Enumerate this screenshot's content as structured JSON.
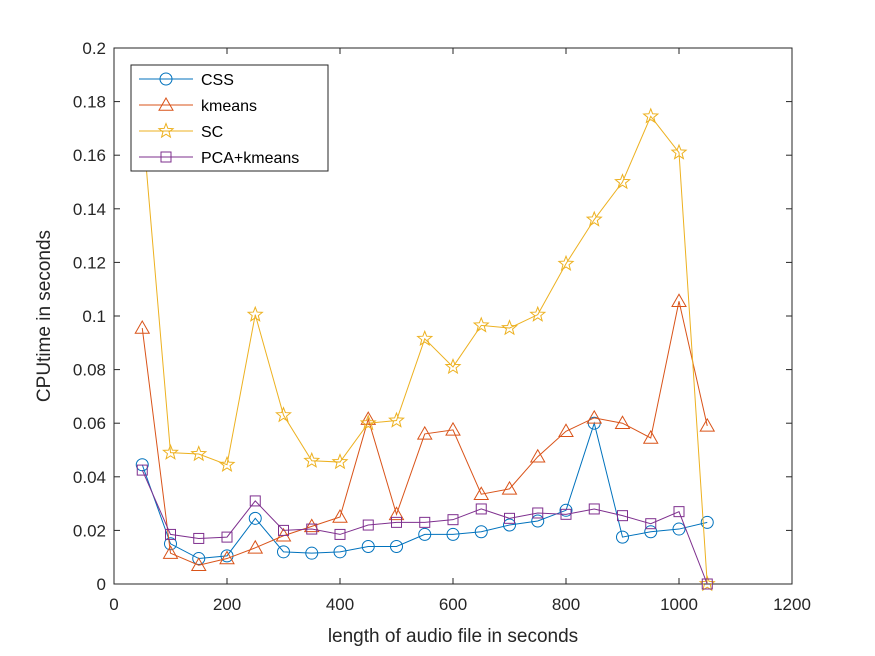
{
  "chart_data": {
    "type": "line",
    "xlabel": "length of audio file in seconds",
    "ylabel": "CPUtime in seconds",
    "xlim": [
      0,
      1200
    ],
    "ylim": [
      0,
      0.2
    ],
    "xticks": [
      0,
      200,
      400,
      600,
      800,
      1000,
      1200
    ],
    "yticks": [
      0,
      0.02,
      0.04,
      0.06,
      0.08,
      0.1,
      0.12,
      0.14,
      0.16,
      0.18,
      0.2
    ],
    "grid": false,
    "legend_position": "top-left",
    "x": [
      50,
      100,
      150,
      200,
      250,
      300,
      350,
      400,
      450,
      500,
      550,
      600,
      650,
      700,
      750,
      800,
      850,
      900,
      950,
      1000,
      1050
    ],
    "series": [
      {
        "name": "CSS",
        "color": "#0072BD",
        "marker": "circle",
        "values": [
          0.0445,
          0.015,
          0.0095,
          0.0105,
          0.0245,
          0.012,
          0.0115,
          0.012,
          0.014,
          0.014,
          0.0185,
          0.0185,
          0.0195,
          0.022,
          0.0235,
          0.0275,
          0.06,
          0.0175,
          0.0195,
          0.0205,
          0.023
        ]
      },
      {
        "name": "kmeans",
        "color": "#D95319",
        "marker": "triangle",
        "values": [
          0.0955,
          0.0115,
          0.007,
          0.0095,
          0.0135,
          0.018,
          0.0215,
          0.025,
          0.0615,
          0.026,
          0.056,
          0.0575,
          0.0335,
          0.0355,
          0.0475,
          0.057,
          0.062,
          0.06,
          0.0545,
          0.1055,
          0.059
        ]
      },
      {
        "name": "SC",
        "color": "#EDB120",
        "marker": "star",
        "values": [
          0.173,
          0.049,
          0.0485,
          0.0445,
          0.1005,
          0.063,
          0.046,
          0.0455,
          0.06,
          0.061,
          0.0915,
          0.081,
          0.0965,
          0.0955,
          0.1005,
          0.1195,
          0.136,
          0.15,
          0.1745,
          0.161,
          0.0
        ]
      },
      {
        "name": "PCA+kmeans",
        "color": "#7E2F8E",
        "marker": "square",
        "values": [
          0.0425,
          0.0185,
          0.017,
          0.0175,
          0.031,
          0.02,
          0.0205,
          0.0185,
          0.022,
          0.023,
          0.023,
          0.024,
          0.028,
          0.0245,
          0.0265,
          0.026,
          0.028,
          0.0255,
          0.0225,
          0.027,
          0.0
        ]
      }
    ]
  }
}
